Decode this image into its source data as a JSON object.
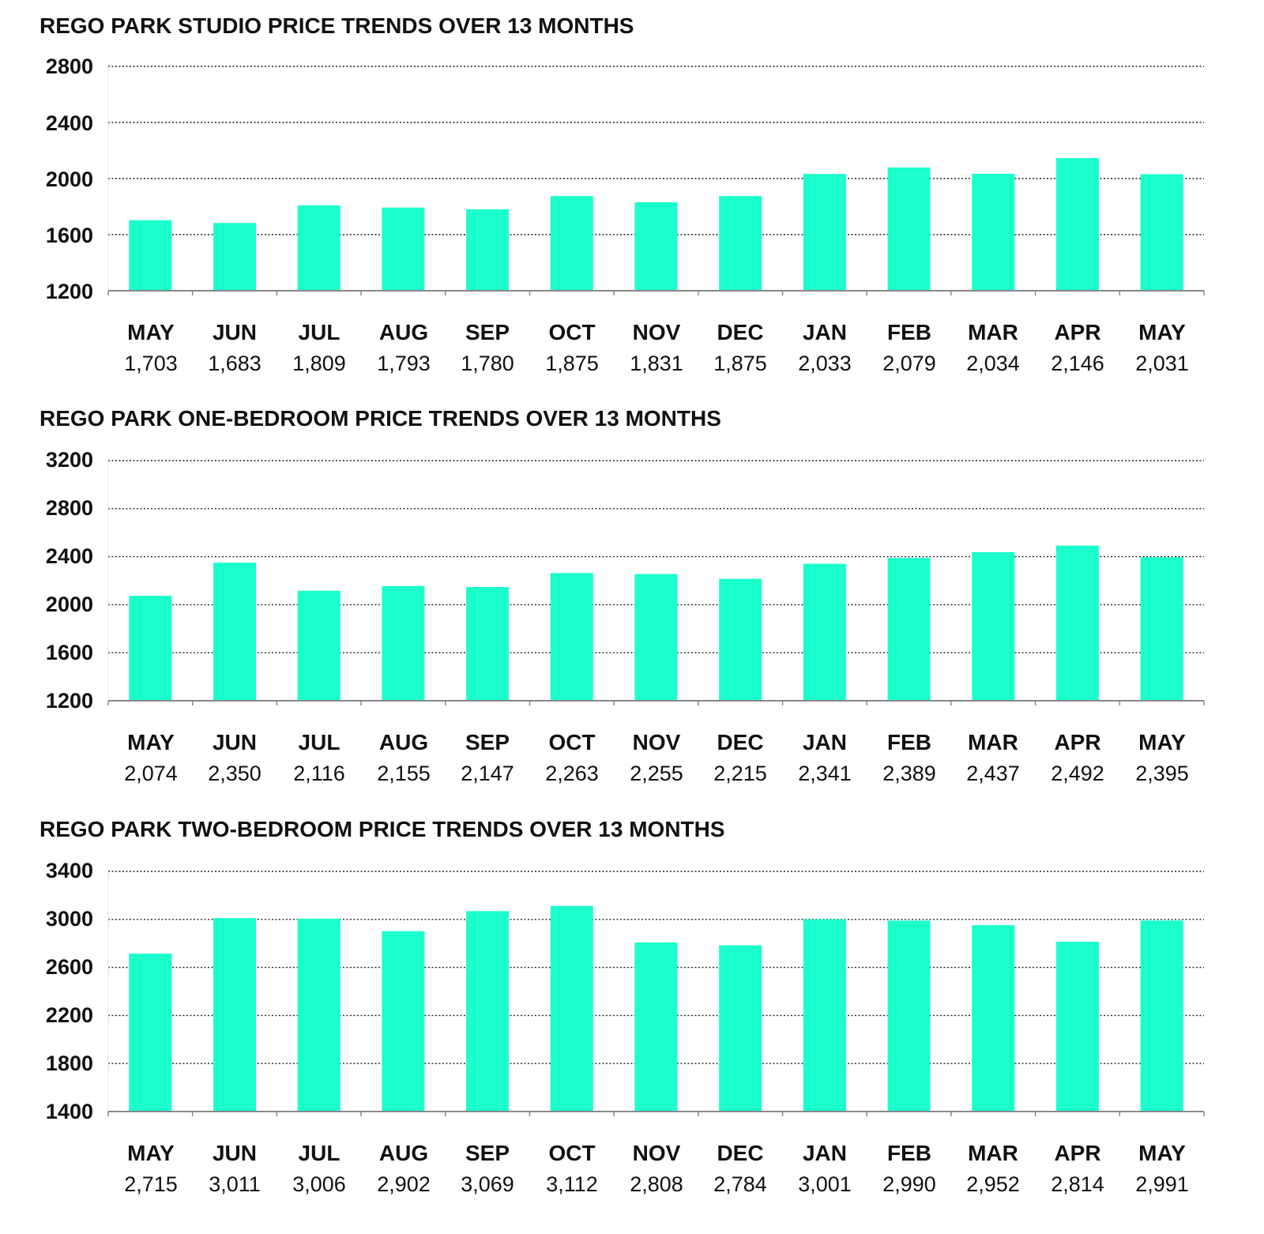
{
  "colors": {
    "bar": "#1affcc",
    "text": "#111111",
    "grid": "#222222",
    "axis": "#888888"
  },
  "chart_data": [
    {
      "type": "bar",
      "title": "REGO PARK STUDIO PRICE TRENDS OVER 13 MONTHS",
      "categories": [
        "MAY",
        "JUN",
        "JUL",
        "AUG",
        "SEP",
        "OCT",
        "NOV",
        "DEC",
        "JAN",
        "FEB",
        "MAR",
        "APR",
        "MAY"
      ],
      "values": [
        1703,
        1683,
        1809,
        1793,
        1780,
        1875,
        1831,
        1875,
        2033,
        2079,
        2034,
        2146,
        2031
      ],
      "value_labels": [
        "1,703",
        "1,683",
        "1,809",
        "1,793",
        "1,780",
        "1,875",
        "1,831",
        "1,875",
        "2,033",
        "2,079",
        "2,034",
        "2,146",
        "2,031"
      ],
      "yticks": [
        "2800",
        "2400",
        "2000",
        "1600",
        "1200"
      ],
      "ylim": [
        1200,
        2800
      ],
      "grid": true
    },
    {
      "type": "bar",
      "title": "REGO PARK ONE-BEDROOM PRICE TRENDS OVER 13 MONTHS",
      "categories": [
        "MAY",
        "JUN",
        "JUL",
        "AUG",
        "SEP",
        "OCT",
        "NOV",
        "DEC",
        "JAN",
        "FEB",
        "MAR",
        "APR",
        "MAY"
      ],
      "values": [
        2074,
        2350,
        2116,
        2155,
        2147,
        2263,
        2255,
        2215,
        2341,
        2389,
        2437,
        2492,
        2395
      ],
      "value_labels": [
        "2,074",
        "2,350",
        "2,116",
        "2,155",
        "2,147",
        "2,263",
        "2,255",
        "2,215",
        "2,341",
        "2,389",
        "2,437",
        "2,492",
        "2,395"
      ],
      "yticks": [
        "3200",
        "2800",
        "2400",
        "2000",
        "1600",
        "1200"
      ],
      "ylim": [
        1200,
        3200
      ],
      "grid": true
    },
    {
      "type": "bar",
      "title": "REGO PARK TWO-BEDROOM PRICE TRENDS OVER 13 MONTHS",
      "categories": [
        "MAY",
        "JUN",
        "JUL",
        "AUG",
        "SEP",
        "OCT",
        "NOV",
        "DEC",
        "JAN",
        "FEB",
        "MAR",
        "APR",
        "MAY"
      ],
      "values": [
        2715,
        3011,
        3006,
        2902,
        3069,
        3112,
        2808,
        2784,
        3001,
        2990,
        2952,
        2814,
        2991
      ],
      "value_labels": [
        "2,715",
        "3,011",
        "3,006",
        "2,902",
        "3,069",
        "3,112",
        "2,808",
        "2,784",
        "3,001",
        "2,990",
        "2,952",
        "2,814",
        "2,991"
      ],
      "yticks": [
        "3400",
        "3000",
        "2600",
        "2200",
        "1800",
        "1400"
      ],
      "ylim": [
        1400,
        3400
      ],
      "grid": true
    }
  ]
}
